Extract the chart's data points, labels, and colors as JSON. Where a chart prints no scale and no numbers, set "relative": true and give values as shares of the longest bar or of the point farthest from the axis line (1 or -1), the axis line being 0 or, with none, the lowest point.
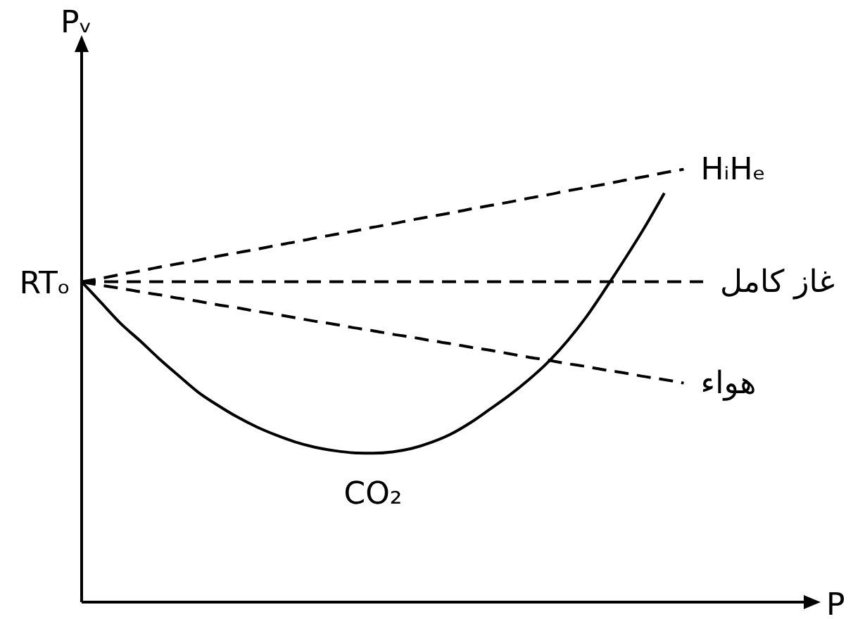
{
  "chart_data": {
    "type": "line",
    "relative": true,
    "xlabel": "P",
    "ylabel": "Pᵥ",
    "line_style": "dashed",
    "marker": "none",
    "categories": [
      null,
      null,
      null,
      null,
      null,
      null,
      null,
      null,
      null,
      null,
      null,
      null,
      null,
      null,
      null,
      null,
      null,
      null,
      null,
      null,
      null,
      null,
      null,
      null,
      null,
      null,
      null,
      null,
      null,
      null,
      null,
      null,
      null,
      null
    ],
    "series": [
      {
        "name": "HᵢHₑ",
        "color": "#000000",
        "values": [
          0.74,
          0.748,
          0.757,
          0.765,
          0.774,
          0.782,
          0.79,
          0.799,
          0.807,
          0.815,
          0.824,
          0.832,
          0.841,
          0.849,
          0.857,
          0.866,
          0.874,
          0.883,
          0.891,
          0.899,
          0.908,
          0.916,
          0.924,
          0.933,
          0.941,
          0.95,
          0.958,
          0.966,
          0.975,
          0.983,
          0.992,
          1,
          null,
          null
        ]
      },
      {
        "name": "غاز كامل",
        "color": "#000000",
        "values": [
          0.74,
          0.74,
          0.74,
          0.74,
          0.74,
          0.74,
          0.74,
          0.74,
          0.74,
          0.74,
          0.74,
          0.74,
          0.74,
          0.74,
          0.74,
          0.74,
          0.74,
          0.74,
          0.74,
          0.74,
          0.74,
          0.74,
          0.74,
          0.74,
          0.74,
          0.74,
          0.74,
          0.74,
          0.74,
          0.74,
          0.74,
          0.74,
          0.74,
          null
        ]
      },
      {
        "name": "هواء",
        "color": "#000000",
        "values": [
          0.74,
          0.732,
          0.725,
          0.717,
          0.71,
          0.702,
          0.695,
          0.687,
          0.68,
          0.672,
          0.665,
          0.657,
          0.649,
          0.642,
          0.634,
          0.627,
          0.619,
          0.612,
          0.604,
          0.597,
          0.589,
          0.582,
          0.574,
          0.566,
          0.559,
          0.551,
          0.544,
          0.536,
          0.529,
          0.521,
          0.514,
          0.506,
          null,
          null
        ]
      },
      {
        "name": "CO₂",
        "color": "#000000",
        "line_style": "solid",
        "values": [
          0.74,
          0.692,
          0.644,
          0.604,
          0.562,
          0.523,
          0.485,
          0.455,
          0.428,
          0.405,
          0.386,
          0.37,
          0.358,
          0.35,
          0.345,
          0.344,
          0.347,
          0.355,
          0.369,
          0.388,
          0.414,
          0.445,
          0.477,
          0.513,
          0.554,
          0.603,
          0.66,
          0.726,
          0.795,
          0.867,
          0.945,
          null,
          null,
          null
        ]
      }
    ],
    "annotations": [
      "RTₒ"
    ]
  }
}
